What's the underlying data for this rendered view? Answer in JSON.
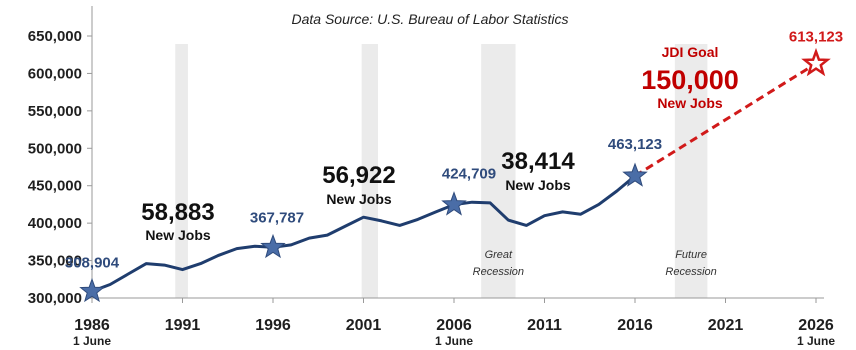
{
  "chart_data": {
    "type": "line",
    "source": "Data Source: U.S. Bureau of Labor Statistics",
    "ylim": [
      300000,
      650000
    ],
    "yticks": [
      300000,
      350000,
      400000,
      450000,
      500000,
      550000,
      600000,
      650000
    ],
    "ytick_labels": [
      "300,000",
      "350,000",
      "400,000",
      "450,000",
      "500,000",
      "550,000",
      "600,000",
      "650,000"
    ],
    "xlim": [
      1986,
      2026
    ],
    "xticks": [
      1986,
      1991,
      1996,
      2001,
      2006,
      2011,
      2016,
      2021,
      2026
    ],
    "xtick_labels": [
      "1986",
      "1991",
      "1996",
      "2001",
      "2006",
      "2011",
      "2016",
      "2021",
      "2026"
    ],
    "xtick_sublabels": {
      "1986": "1 June",
      "2006": "1 June",
      "2026": "1 June"
    },
    "grid": false,
    "series": [
      {
        "style": "solid",
        "color": "#1f3d6e",
        "x": [
          1986,
          1987,
          1988,
          1989,
          1990,
          1991,
          1992,
          1993,
          1994,
          1995,
          1996,
          1997,
          1998,
          1999,
          2000,
          2001,
          2002,
          2003,
          2004,
          2005,
          2006,
          2007,
          2008,
          2009,
          2010,
          2011,
          2012,
          2013,
          2014,
          2015,
          2016
        ],
        "y": [
          308904,
          318000,
          332000,
          346000,
          344000,
          338000,
          346000,
          357000,
          366000,
          369000,
          367787,
          371000,
          380000,
          384000,
          396000,
          408000,
          403000,
          397000,
          405000,
          415000,
          424709,
          428000,
          427000,
          404000,
          397000,
          410000,
          415000,
          412000,
          425000,
          443000,
          463123
        ]
      },
      {
        "style": "dashed",
        "color": "#d11a1a",
        "x": [
          2016,
          2026
        ],
        "y": [
          463123,
          613123
        ]
      }
    ],
    "markers": [
      {
        "x": 1986,
        "y": 308904,
        "label": "308,904",
        "fill": "#4a6da7"
      },
      {
        "x": 1996,
        "y": 367787,
        "label": "367,787",
        "fill": "#4a6da7"
      },
      {
        "x": 2006,
        "y": 424709,
        "label": "424,709",
        "fill": "#4a6da7"
      },
      {
        "x": 2016,
        "y": 463123,
        "label": "463,123",
        "fill": "#4a6da7"
      },
      {
        "x": 2026,
        "y": 613123,
        "label": "613,123",
        "fill": "#ffffff",
        "stroke": "#d11a1a"
      }
    ],
    "shaded_periods": [
      {
        "start": 1990.6,
        "end": 1991.3
      },
      {
        "start": 2000.9,
        "end": 2001.8
      },
      {
        "start": 2007.5,
        "end": 2009.4,
        "label": [
          "Great",
          "Recession"
        ]
      },
      {
        "start": 2018.2,
        "end": 2020.0,
        "label": [
          "Future",
          "Recession"
        ]
      }
    ],
    "annotations": [
      {
        "number": "58,883",
        "text": "New Jobs"
      },
      {
        "number": "56,922",
        "text": "New Jobs"
      },
      {
        "number": "38,414",
        "text": "New Jobs"
      }
    ],
    "goal": {
      "title": "JDI Goal",
      "number": "150,000",
      "text": "New Jobs"
    }
  }
}
